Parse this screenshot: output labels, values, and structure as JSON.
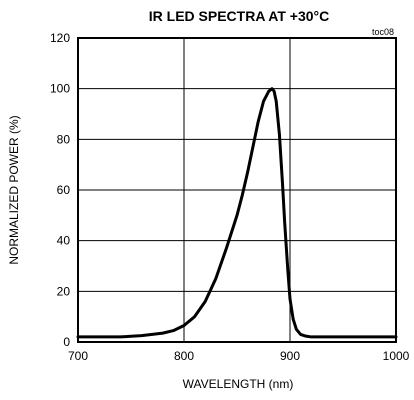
{
  "chart_data": {
    "type": "line",
    "title": "IR LED SPECTRA AT +30°C",
    "tag": "toc08",
    "xlabel": "WAVELENGTH (nm)",
    "ylabel": "NORMALIZED POWER (%)",
    "xlim": [
      700,
      1000
    ],
    "ylim": [
      0,
      120
    ],
    "xticks": [
      700,
      800,
      900,
      1000
    ],
    "yticks": [
      0,
      20,
      40,
      60,
      80,
      100,
      120
    ],
    "grid": true,
    "line_color": "#000000",
    "series": [
      {
        "x": [
          700,
          720,
          740,
          760,
          770,
          780,
          790,
          800,
          810,
          820,
          830,
          840,
          850,
          855,
          860,
          865,
          870,
          875,
          880,
          883,
          885,
          887,
          890,
          893,
          895,
          898,
          900,
          903,
          906,
          910,
          915,
          920,
          930,
          950,
          1000
        ],
        "values": [
          2,
          2,
          2,
          2.5,
          3,
          3.5,
          4.5,
          6.5,
          10,
          16,
          25,
          37,
          50,
          58,
          67,
          77,
          87,
          95,
          99,
          100,
          99,
          95,
          82,
          62,
          47,
          28,
          17,
          9,
          5,
          3,
          2.3,
          2,
          2,
          2,
          2
        ]
      }
    ]
  }
}
